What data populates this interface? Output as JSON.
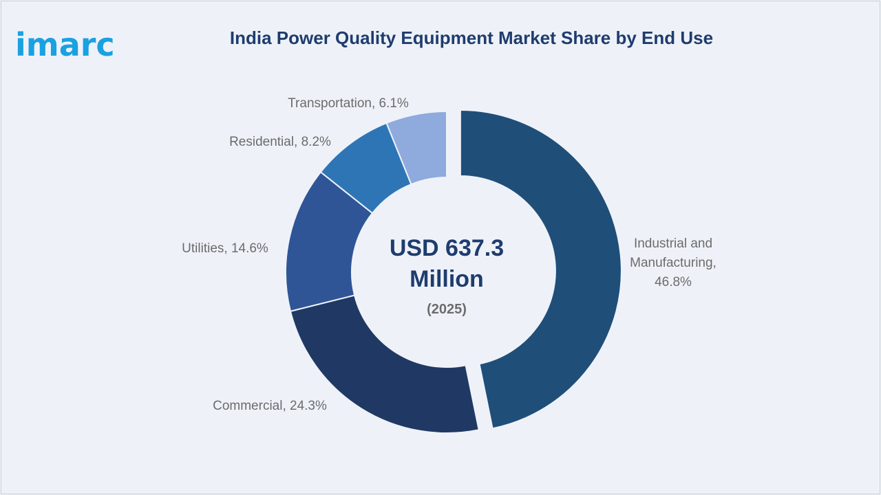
{
  "logo": {
    "text": "imarc",
    "color": "#1aa1e1"
  },
  "chart_data": {
    "type": "pie",
    "title": "India Power Quality Equipment Market Share by End Use",
    "center": {
      "value": "USD 637.3",
      "unit": "Million",
      "year": "(2025)"
    },
    "categories": [
      "Industrial and Manufacturing",
      "Commercial",
      "Utilities",
      "Residential",
      "Transportation"
    ],
    "values": [
      46.8,
      24.3,
      14.6,
      8.2,
      6.1
    ],
    "labels": [
      [
        "Industrial and",
        "Manufacturing,",
        "46.8%"
      ],
      [
        "Commercial, 24.3%"
      ],
      [
        "Utilities, 14.6%"
      ],
      [
        "Residential, 8.2%"
      ],
      [
        "Transportation, 6.1%"
      ]
    ],
    "colors": [
      "#1f4e79",
      "#203864",
      "#2f5597",
      "#2e75b6",
      "#8faadc"
    ],
    "exploded": "Industrial and Manufacturing",
    "donut": true
  }
}
